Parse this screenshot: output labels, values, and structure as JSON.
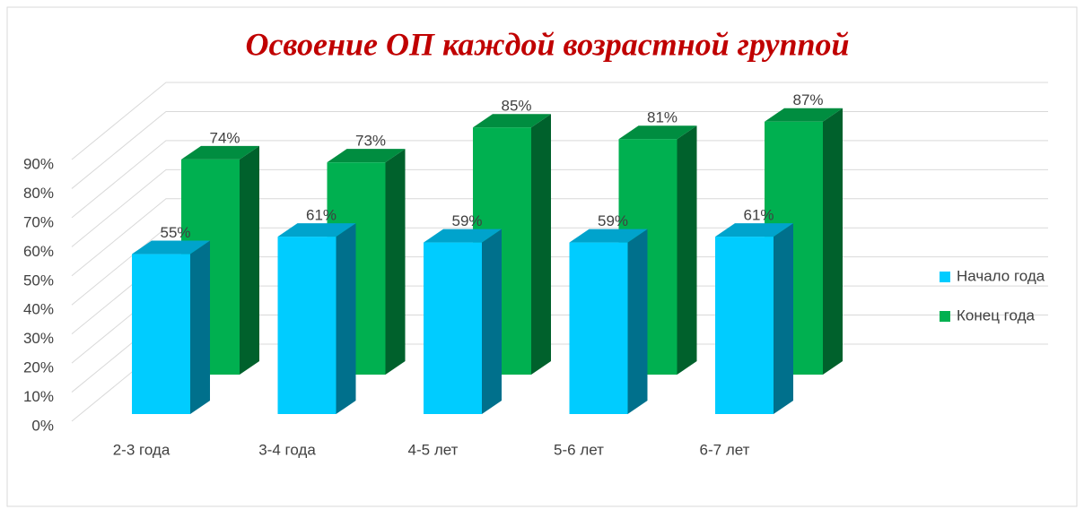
{
  "chart_data": {
    "type": "bar3d",
    "title": "Освоение ОП каждой возрастной группой",
    "categories": [
      "2-3 года",
      "3-4 года",
      "4-5 лет",
      "5-6 лет",
      "6-7 лет"
    ],
    "series": [
      {
        "name": "Начало года",
        "color": "#00ccff",
        "values": [
          55,
          61,
          59,
          59,
          61
        ],
        "value_labels": [
          "55%",
          "61%",
          "59%",
          "59%",
          "61%"
        ]
      },
      {
        "name": "Конец года",
        "color": "#00b050",
        "values": [
          74,
          73,
          85,
          81,
          87
        ],
        "value_labels": [
          "74%",
          "73%",
          "85%",
          "81%",
          "87%"
        ]
      }
    ],
    "ylim": [
      0,
      90
    ],
    "yticks": [
      {
        "value": 0,
        "label": "0%"
      },
      {
        "value": 10,
        "label": "10%"
      },
      {
        "value": 20,
        "label": "20%"
      },
      {
        "value": 30,
        "label": "30%"
      },
      {
        "value": 40,
        "label": "40%"
      },
      {
        "value": 50,
        "label": "50%"
      },
      {
        "value": 60,
        "label": "60%"
      },
      {
        "value": 70,
        "label": "70%"
      },
      {
        "value": 80,
        "label": "80%"
      },
      {
        "value": 90,
        "label": "90%"
      }
    ],
    "grid": true,
    "legend": "right"
  }
}
